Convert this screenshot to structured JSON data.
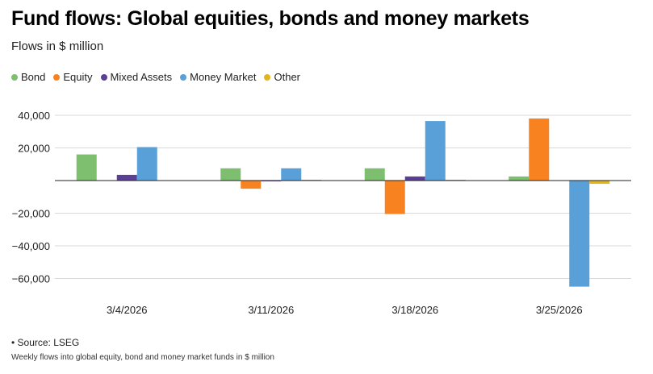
{
  "colors": {
    "Bond": "#7dbf6e",
    "Equity": "#f7821f",
    "Mixed Assets": "#5b3f97",
    "Money Market": "#5aa0d8",
    "Other": "#e3b51d",
    "grid": "#d9d9d9",
    "zero_line": "#222222"
  },
  "chart_data": {
    "type": "bar",
    "title": "Fund flows: Global equities, bonds and money markets",
    "subtitle": "Flows in $ million",
    "categories": [
      "3/4/2026",
      "3/11/2026",
      "3/18/2026",
      "3/25/2026"
    ],
    "series": [
      {
        "name": "Bond",
        "values": [
          16000,
          7500,
          7500,
          2500
        ]
      },
      {
        "name": "Equity",
        "values": [
          0,
          -5000,
          -20500,
          38000
        ]
      },
      {
        "name": "Mixed Assets",
        "values": [
          3500,
          -500,
          2500,
          0
        ]
      },
      {
        "name": "Money Market",
        "values": [
          20500,
          7500,
          36500,
          -65000
        ]
      },
      {
        "name": "Other",
        "values": [
          0,
          500,
          500,
          -2000
        ]
      }
    ],
    "ylim": [
      -65000,
      45000
    ],
    "yticks": [
      40000,
      20000,
      0,
      -20000,
      -40000,
      -60000
    ],
    "ytick_labels": [
      "40,000",
      "20,000",
      "",
      "−20,000",
      "−40,000",
      "−60,000"
    ],
    "grid": true,
    "legend": "top-left"
  },
  "footer": {
    "source": "• Source: LSEG",
    "note": "Weekly flows into global equity, bond and money market funds in $ million"
  }
}
